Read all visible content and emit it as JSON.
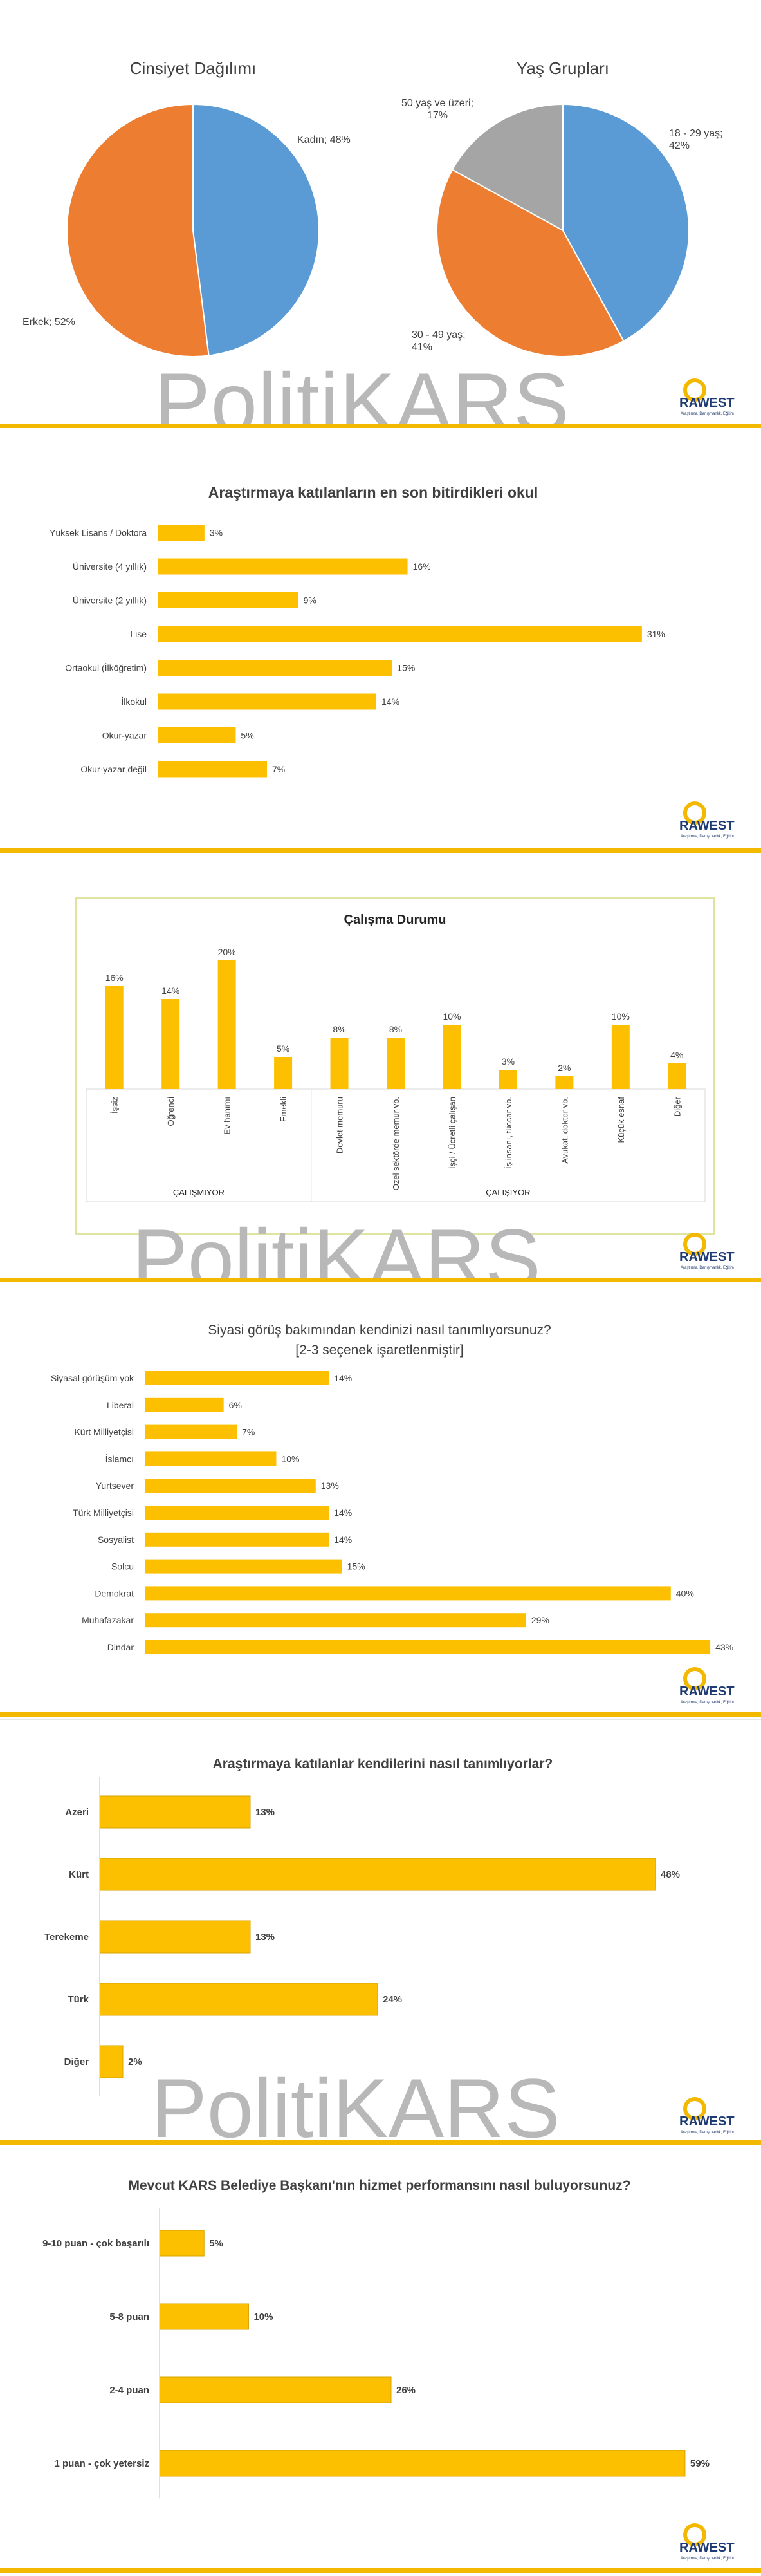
{
  "watermark": "PolitiKARS",
  "logo": {
    "name": "RAWEST",
    "tagline": "Araştırma, Danışmanlık, Eğitim"
  },
  "colors": {
    "accent": "#f2b900",
    "bar": "#fcc000",
    "bar_stroke": "#d9a300",
    "blue": "#5b9bd5",
    "orange": "#ed7d31",
    "gray": "#a5a5a5"
  },
  "chart_data": [
    {
      "id": "gender",
      "type": "pie",
      "title": "Cinsiyet Dağılımı",
      "slices": [
        {
          "label": "Kadın; 48%",
          "value": 48,
          "color": "#5b9bd5"
        },
        {
          "label": "Erkek; 52%",
          "value": 52,
          "color": "#ed7d31"
        }
      ]
    },
    {
      "id": "age",
      "type": "pie",
      "title": "Yaş Grupları",
      "slices": [
        {
          "label": "18 - 29 yaş;\n42%",
          "value": 42,
          "color": "#5b9bd5"
        },
        {
          "label": "30 - 49 yaş;\n41%",
          "value": 41,
          "color": "#ed7d31"
        },
        {
          "label": "50 yaş ve üzeri;\n17%",
          "value": 17,
          "color": "#a5a5a5"
        }
      ]
    },
    {
      "id": "education",
      "type": "bar",
      "orientation": "horizontal",
      "title": "Araştırmaya katılanların en son bitirdikleri okul",
      "categories": [
        "Yüksek Lisans / Doktora",
        "Üniversite (4 yıllık)",
        "Üniversite (2 yıllık)",
        "Lise",
        "Ortaokul (İlköğretim)",
        "İlkokul",
        "Okur-yazar",
        "Okur-yazar değil"
      ],
      "values": [
        3,
        16,
        9,
        31,
        15,
        14,
        5,
        7
      ],
      "labels": [
        "3%",
        "16%",
        "9%",
        "31%",
        "15%",
        "14%",
        "5%",
        "7%"
      ]
    },
    {
      "id": "employment",
      "type": "bar",
      "orientation": "vertical",
      "title": "Çalışma Durumu",
      "categories": [
        "İşsiz",
        "Öğrenci",
        "Ev hanımı",
        "Emekli",
        "Devlet memuru",
        "Özel sektörde memur vb.",
        "İşçi / Ücretli çalışan",
        "İş insanı, tüccar vb.",
        "Avukat, doktor vb.",
        "Küçük esnaf",
        "Diğer"
      ],
      "values": [
        16,
        14,
        20,
        5,
        8,
        8,
        10,
        3,
        2,
        10,
        4
      ],
      "labels": [
        "16%",
        "14%",
        "20%",
        "5%",
        "8%",
        "8%",
        "10%",
        "3%",
        "2%",
        "10%",
        "4%"
      ],
      "groups": [
        {
          "label": "ÇALIŞMIYOR",
          "count": 4
        },
        {
          "label": "ÇALIŞIYOR",
          "count": 7
        }
      ]
    },
    {
      "id": "political",
      "type": "bar",
      "orientation": "horizontal",
      "title": "Siyasi görüş bakımından kendinizi nasıl tanımlıyorsunuz?",
      "subtitle": "[2-3 seçenek işaretlenmiştir]",
      "categories": [
        "Siyasal görüşüm yok",
        "Liberal",
        "Kürt Milliyetçisi",
        "İslamcı",
        "Yurtsever",
        "Türk Milliyetçisi",
        "Sosyalist",
        "Solcu",
        "Demokrat",
        "Muhafazakar",
        "Dindar"
      ],
      "values": [
        14,
        6,
        7,
        10,
        13,
        14,
        14,
        15,
        40,
        29,
        43
      ],
      "labels": [
        "14%",
        "6%",
        "7%",
        "10%",
        "13%",
        "14%",
        "14%",
        "15%",
        "40%",
        "29%",
        "43%"
      ]
    },
    {
      "id": "identity",
      "type": "bar",
      "orientation": "horizontal",
      "title": "Araştırmaya katılanlar kendilerini nasıl tanımlıyorlar?",
      "categories": [
        "Azeri",
        "Kürt",
        "Terekeme",
        "Türk",
        "Diğer"
      ],
      "values": [
        13,
        48,
        13,
        24,
        2
      ],
      "labels": [
        "13%",
        "48%",
        "13%",
        "24%",
        "2%"
      ]
    },
    {
      "id": "mayor",
      "type": "bar",
      "orientation": "horizontal",
      "title": "Mevcut KARS Belediye Başkanı'nın hizmet performansını nasıl buluyorsunuz?",
      "categories": [
        "9-10 puan - çok başarılı",
        "5-8 puan",
        "2-4 puan",
        "1 puan - çok yetersiz"
      ],
      "values": [
        5,
        10,
        26,
        59
      ],
      "labels": [
        "5%",
        "10%",
        "26%",
        "59%"
      ]
    }
  ]
}
